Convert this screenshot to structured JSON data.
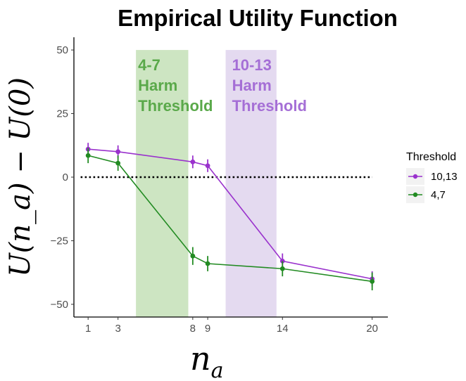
{
  "chart_data": {
    "type": "line",
    "title": "Empirical Utility Function",
    "xlabel_base": "n",
    "xlabel_sub": "a",
    "ylabel": "U(n_a) − U(0)",
    "x_ticks": [
      1,
      3,
      8,
      9,
      14,
      20
    ],
    "y_ticks": [
      50,
      25,
      0,
      -25,
      -50
    ],
    "y_tick_labels": [
      "50",
      "25",
      "0",
      "−25",
      "−50"
    ],
    "xlim": [
      0.05,
      21.05
    ],
    "ylim": [
      -55,
      55
    ],
    "reference_line": {
      "y": 0,
      "style": "dotted",
      "x_from": 0.5,
      "x_to": 20
    },
    "bands": [
      {
        "x_from": 4.2,
        "x_to": 7.7,
        "color": "#cde5c2",
        "label_lines": [
          "4-7",
          "Harm",
          "Threshold"
        ],
        "label_color": "#5aa94a"
      },
      {
        "x_from": 10.2,
        "x_to": 13.6,
        "color": "#e4daf0",
        "label_lines": [
          "10-13",
          "Harm",
          "Threshold"
        ],
        "label_color": "#a56fd6"
      }
    ],
    "series": [
      {
        "name": "10,13",
        "color": "#9a32cd",
        "points": [
          {
            "x": 1,
            "y": 11,
            "err": 2.5
          },
          {
            "x": 3,
            "y": 10,
            "err": 2.5
          },
          {
            "x": 8,
            "y": 6,
            "err": 2.5
          },
          {
            "x": 9,
            "y": 4.5,
            "err": 2.5
          },
          {
            "x": 14,
            "y": -33,
            "err": 3
          },
          {
            "x": 20,
            "y": -40,
            "err": 3
          }
        ]
      },
      {
        "name": "4,7",
        "color": "#228b22",
        "points": [
          {
            "x": 1,
            "y": 8.5,
            "err": 3
          },
          {
            "x": 3,
            "y": 5.5,
            "err": 3
          },
          {
            "x": 8,
            "y": -31,
            "err": 3.5
          },
          {
            "x": 9,
            "y": -34,
            "err": 3
          },
          {
            "x": 14,
            "y": -36,
            "err": 3
          },
          {
            "x": 20,
            "y": -41,
            "err": 3.5
          }
        ]
      }
    ],
    "legend": {
      "title": "Threshold",
      "position": "right"
    }
  }
}
